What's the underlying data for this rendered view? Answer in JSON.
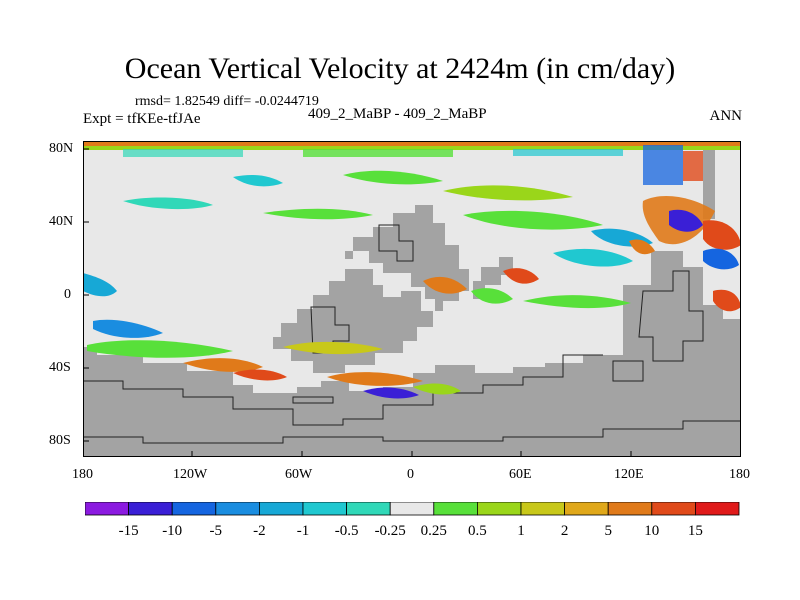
{
  "title": "Ocean Vertical Velocity at 2424m (in cm/day)",
  "stats": "rmsd= 1.82549 diff= -0.0244719",
  "left_label": "Expt = tfKEe-tfJAe",
  "center_label": "409_2_MaBP - 409_2_MaBP",
  "right_label": "ANN",
  "y_ticks": [
    "80N",
    "40N",
    "0",
    "40S",
    "80S"
  ],
  "x_ticks": [
    "180",
    "120W",
    "60W",
    "0",
    "60E",
    "120E",
    "180"
  ],
  "colors": {
    "land": "#a3a3a3",
    "ocean_near_zero": "#e8e8e8",
    "coast_line": "#222222"
  },
  "colorbar": {
    "labels": [
      "-15",
      "-10",
      "-5",
      "-2",
      "-1",
      "-0.5",
      "-0.25",
      "0.25",
      "0.5",
      "1",
      "2",
      "5",
      "10",
      "15"
    ],
    "colors": [
      "#8b1ae0",
      "#3a1fd6",
      "#1565e0",
      "#1a8de0",
      "#17a8d6",
      "#20c8d0",
      "#30d8b8",
      "#e8e8e8",
      "#58e03a",
      "#9ad61a",
      "#c8c81a",
      "#e0a81a",
      "#e07a1a",
      "#e04a1a",
      "#e01a1a"
    ]
  }
}
